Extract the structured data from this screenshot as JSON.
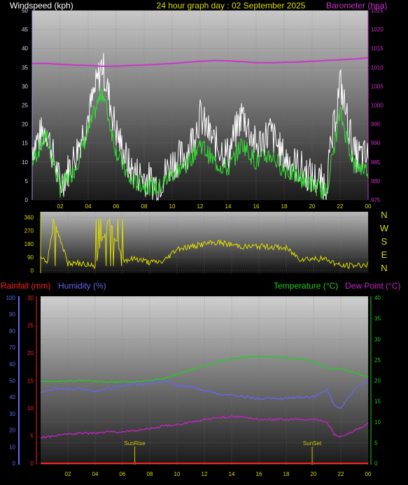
{
  "header": {
    "windspeed_label": "Windspeed (kph)",
    "title": "24 hour graph day : 02 September 2025",
    "barometer_label": "Barometer (hpa)"
  },
  "colors": {
    "wind_gust": "#ffffff",
    "wind_avg": "#33dd33",
    "barometer": "#cc33cc",
    "direction": "#dddd00",
    "rainfall": "#ff2020",
    "humidity": "#6666ee",
    "temperature": "#22cc22",
    "dewpoint": "#cc22cc",
    "sun_marker": "#c8c800"
  },
  "chart_data": [
    {
      "type": "line",
      "name": "wind-barometer",
      "x_ticks": [
        "02",
        "04",
        "06",
        "08",
        "10",
        "12",
        "14",
        "16",
        "18",
        "20",
        "22",
        "00"
      ],
      "y_left_label": "Windspeed (kph)",
      "y_left_ticks": [
        "0",
        "5",
        "10",
        "15",
        "20",
        "25",
        "30",
        "35",
        "40",
        "45",
        "50"
      ],
      "y_left_lim": [
        0,
        50
      ],
      "y_right_label": "Barometer (hpa)",
      "y_right_ticks": [
        "975",
        "980",
        "985",
        "990",
        "995",
        "1000",
        "1005",
        "1010",
        "1015",
        "1020",
        "1025"
      ],
      "y_right_lim": [
        975,
        1025
      ],
      "x_hours": [
        0,
        1,
        2,
        3,
        4,
        5,
        6,
        7,
        8,
        9,
        10,
        11,
        12,
        13,
        14,
        15,
        16,
        17,
        18,
        19,
        20,
        21,
        22,
        23,
        24
      ],
      "series": [
        {
          "name": "gust",
          "values": [
            14,
            19,
            4,
            11,
            22,
            36,
            18,
            8,
            6,
            4,
            10,
            12,
            22,
            15,
            12,
            23,
            14,
            18,
            11,
            9,
            6,
            4,
            31,
            12,
            11
          ]
        },
        {
          "name": "average",
          "values": [
            10,
            17,
            3,
            8,
            18,
            29,
            13,
            5,
            4,
            3,
            7,
            9,
            15,
            10,
            8,
            15,
            10,
            12,
            8,
            6,
            4,
            2,
            23,
            9,
            8
          ]
        },
        {
          "name": "barometer",
          "values": [
            1011,
            1011,
            1010.8,
            1010.6,
            1010.5,
            1010.3,
            1010.3,
            1010.5,
            1010.6,
            1010.8,
            1011,
            1011.3,
            1011.6,
            1011.8,
            1011.7,
            1011.5,
            1011.2,
            1011.2,
            1011.3,
            1011.4,
            1011.6,
            1011.8,
            1012,
            1012.2,
            1012.5
          ]
        }
      ]
    },
    {
      "type": "line",
      "name": "wind-direction",
      "x_ticks": [
        "02",
        "04",
        "06",
        "08",
        "10",
        "12",
        "14",
        "16",
        "18",
        "20",
        "22",
        "00"
      ],
      "y_left_ticks": [
        "0",
        "90",
        "180",
        "270",
        "360"
      ],
      "y_lim": [
        0,
        360
      ],
      "y_right_ticks": [
        "N",
        "E",
        "S",
        "W",
        "N"
      ],
      "x_hours": [
        0,
        0.5,
        1,
        2,
        3,
        4,
        5,
        6,
        7,
        8,
        9,
        10,
        11,
        12,
        13,
        14,
        15,
        16,
        17,
        18,
        19,
        20,
        21,
        22,
        23,
        24
      ],
      "values": [
        80,
        60,
        340,
        45,
        50,
        30,
        350,
        70,
        80,
        55,
        60,
        150,
        160,
        180,
        190,
        175,
        160,
        165,
        160,
        150,
        80,
        80,
        75,
        30,
        35,
        40
      ]
    },
    {
      "type": "line",
      "name": "temperature-humidity",
      "x_ticks": [
        "02",
        "04",
        "06",
        "08",
        "10",
        "12",
        "14",
        "16",
        "18",
        "20",
        "22",
        "00"
      ],
      "rain_label": "Rainfall (mm)",
      "rain_ticks": [
        "0",
        "5",
        "10",
        "15",
        "20",
        "25",
        "30"
      ],
      "rain_lim": [
        0,
        30
      ],
      "humidity_label": "Humidity (%)",
      "humidity_ticks": [
        "0",
        "10",
        "20",
        "30",
        "40",
        "50",
        "60",
        "70",
        "80",
        "90",
        "100"
      ],
      "humidity_lim": [
        0,
        100
      ],
      "temperature_label": "Temperature (°C)",
      "dewpoint_label": "Dew Point (°C)",
      "temp_ticks": [
        "0",
        "5",
        "10",
        "15",
        "20",
        "25",
        "30",
        "35",
        "40"
      ],
      "temp_lim": [
        0,
        40
      ],
      "x_hours": [
        0,
        1,
        2,
        3,
        4,
        5,
        6,
        7,
        8,
        9,
        10,
        11,
        12,
        13,
        14,
        15,
        16,
        17,
        18,
        19,
        20,
        21,
        21.5,
        22,
        23,
        24
      ],
      "series": [
        {
          "name": "temperature",
          "values": [
            19.8,
            19.7,
            19.9,
            20,
            19.8,
            19.6,
            19.7,
            19.8,
            20,
            20.5,
            21.5,
            22.5,
            23.5,
            24.5,
            25.2,
            25.6,
            25.8,
            25.7,
            25.5,
            25.2,
            24.5,
            23,
            22.8,
            22.8,
            21.8,
            20.8
          ]
        },
        {
          "name": "humidity",
          "values": [
            43,
            45,
            45,
            45,
            44,
            45,
            47,
            48,
            48,
            50,
            47,
            46,
            44,
            42,
            41,
            40,
            39,
            39,
            39,
            40,
            40,
            45,
            35,
            33,
            45,
            50
          ]
        },
        {
          "name": "dewpoint",
          "values": [
            6.3,
            6.6,
            7,
            7.3,
            7.3,
            7.6,
            7.6,
            8,
            8.3,
            9,
            9.3,
            10,
            10.6,
            11,
            11.3,
            11,
            10.6,
            10.6,
            10.6,
            10.6,
            10.6,
            10,
            7,
            6.3,
            8,
            9.6
          ]
        },
        {
          "name": "rainfall",
          "values": [
            0,
            0,
            0,
            0,
            0,
            0,
            0,
            0,
            0,
            0,
            0,
            0,
            0,
            0,
            0,
            0,
            0,
            0,
            0,
            0,
            0,
            0,
            0,
            0,
            0,
            0
          ]
        }
      ],
      "annotations": [
        {
          "label": "SunRise",
          "hour": 6.9
        },
        {
          "label": "SunSet",
          "hour": 19.9
        }
      ]
    }
  ]
}
